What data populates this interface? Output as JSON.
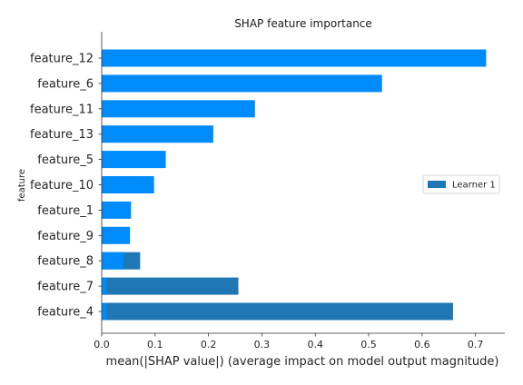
{
  "chart_data": {
    "type": "bar",
    "orientation": "horizontal",
    "title": "SHAP feature importance",
    "xlabel": "mean(|SHAP value|) (average impact on model output magnitude)",
    "ylabel": "feature",
    "xlim": [
      0,
      0.755
    ],
    "xticks": [
      "0.0",
      "0.1",
      "0.2",
      "0.3",
      "0.4",
      "0.5",
      "0.6",
      "0.7"
    ],
    "categories": [
      "feature_12",
      "feature_6",
      "feature_11",
      "feature_13",
      "feature_5",
      "feature_10",
      "feature_1",
      "feature_9",
      "feature_8",
      "feature_7",
      "feature_4"
    ],
    "series": [
      {
        "name": "Learner 1",
        "color": "#1f77b4",
        "values": [
          0,
          0,
          0,
          0,
          0,
          0,
          0,
          0,
          0.072,
          0.256,
          0.658
        ]
      },
      {
        "color": "#008bfb",
        "values": [
          0.72,
          0.525,
          0.287,
          0.209,
          0.12,
          0.098,
          0.055,
          0.053,
          0.041,
          0.009,
          0.009
        ]
      }
    ],
    "grid": false,
    "legend": {
      "position": "right",
      "entries": [
        "Learner 1"
      ]
    }
  }
}
